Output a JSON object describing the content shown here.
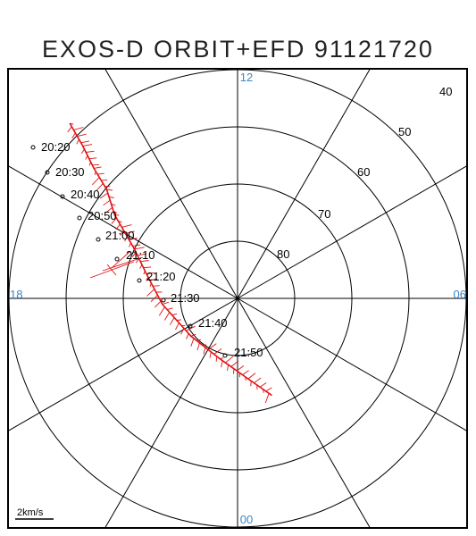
{
  "title": "EXOS-D ORBIT+EFD 91121720",
  "colors": {
    "frame": "#000000",
    "grid": "#000000",
    "mlt_label": "#3a87c8",
    "trace": "#e01010",
    "text": "#000000"
  },
  "mlt_labels": {
    "top": "12",
    "right": "06",
    "bottom": "00",
    "left": "18"
  },
  "latitude_labels": [
    "40",
    "50",
    "60",
    "70",
    "80"
  ],
  "scale_label": "2km/s",
  "orbit": {
    "time_labels": [
      "20:20",
      "20:30",
      "20:40",
      "20:50",
      "21:00",
      "21:10",
      "21:20",
      "21:30",
      "21:40",
      "21:50"
    ],
    "path": [
      {
        "lat": 47.6,
        "mlt": 14.92
      },
      {
        "lat": 52.0,
        "mlt": 15.03
      },
      {
        "lat": 56.1,
        "mlt": 15.19
      },
      {
        "lat": 60.2,
        "mlt": 15.35
      },
      {
        "lat": 64.0,
        "mlt": 15.72
      },
      {
        "lat": 70.0,
        "mlt": 16.3
      },
      {
        "lat": 73.5,
        "mlt": 17.0
      },
      {
        "lat": 76.8,
        "mlt": 18.3
      },
      {
        "lat": 79.5,
        "mlt": 20.6
      },
      {
        "lat": 79.0,
        "mlt": 22.9
      },
      {
        "lat": 75.8,
        "mlt": 0.5
      },
      {
        "lat": 72.0,
        "mlt": 1.3
      }
    ]
  }
}
